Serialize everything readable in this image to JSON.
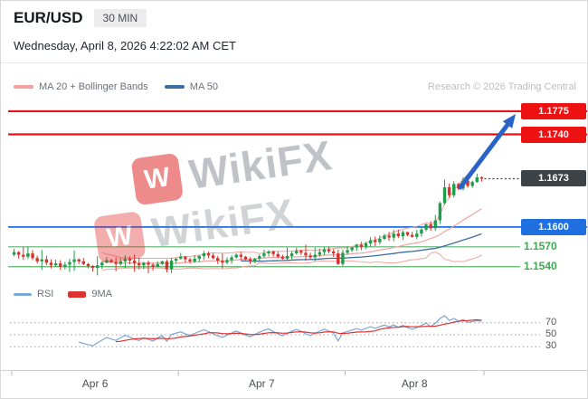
{
  "header": {
    "symbol": "EUR/USD",
    "interval": "30 MIN",
    "datetime": "Wednesday, April 8, 2026 4:22:02 AM CET",
    "research_credit": "Research © 2026 Trading Central"
  },
  "legend": {
    "ma_bollinger": "MA 20 + Bollinger Bands",
    "ma50": "MA 50"
  },
  "rsi_legend": {
    "rsi": "RSI",
    "ma": "9MA"
  },
  "watermark": {
    "text": "WikiFX"
  },
  "chart_data": {
    "type": "candlestick",
    "symbol": "EUR/USD",
    "interval": "30 MIN",
    "ylim": [
      1.1515,
      1.1805
    ],
    "x_categories": [
      "Apr 6",
      "Apr 7",
      "Apr 8"
    ],
    "day_candle_counts": [
      36,
      36,
      30
    ],
    "closes": [
      1.1562,
      1.1558,
      1.1555,
      1.156,
      1.1553,
      1.1548,
      1.1551,
      1.1546,
      1.1542,
      1.1545,
      1.154,
      1.1543,
      1.1547,
      1.1551,
      1.1548,
      1.1544,
      1.1541,
      1.1538,
      1.1542,
      1.1546,
      1.155,
      1.1547,
      1.1544,
      1.1548,
      1.1552,
      1.1549,
      1.1545,
      1.1542,
      1.1546,
      1.1543,
      1.154,
      1.1544,
      1.1548,
      1.1536,
      1.1549,
      1.1552,
      1.1555,
      1.1551,
      1.1548,
      1.1552,
      1.1556,
      1.156,
      1.1557,
      1.1553,
      1.1549,
      1.1546,
      1.155,
      1.1554,
      1.1558,
      1.1555,
      1.1551,
      1.1548,
      1.1552,
      1.1556,
      1.156,
      1.1563,
      1.1559,
      1.1555,
      1.1552,
      1.1556,
      1.156,
      1.1564,
      1.1561,
      1.1557,
      1.1554,
      1.1558,
      1.1562,
      1.1566,
      1.1563,
      1.156,
      1.1544,
      1.1561,
      1.1565,
      1.1569,
      1.1573,
      1.157,
      1.1575,
      1.158,
      1.1577,
      1.1582,
      1.1587,
      1.1584,
      1.159,
      1.1586,
      1.1592,
      1.1588,
      1.1585,
      1.159,
      1.1596,
      1.1604,
      1.1598,
      1.161,
      1.1636,
      1.166,
      1.1648,
      1.1665,
      1.1658,
      1.167,
      1.1662,
      1.1668,
      1.1675,
      1.1673
    ],
    "levels": [
      {
        "label": "1.1775",
        "value": 1.1775,
        "role": "resistance",
        "line": "#ee1111",
        "box_bg": "#ee1111",
        "box_text": "#ffffff",
        "line_style": "solid",
        "line_width": 2.2,
        "full_width": true
      },
      {
        "label": "1.1740",
        "value": 1.174,
        "role": "resistance",
        "line": "#ee1111",
        "box_bg": "#ee1111",
        "box_text": "#ffffff",
        "line_style": "solid",
        "line_width": 2.2,
        "full_width": true
      },
      {
        "label": "1.1673",
        "value": 1.1673,
        "role": "last_price",
        "line": "#444444",
        "box_bg": "#3d4247",
        "box_text": "#ffffff",
        "line_style": "dotted",
        "line_width": 1.2,
        "full_width": false
      },
      {
        "label": "1.1600",
        "value": 1.16,
        "role": "support",
        "line": "#1f6fe0",
        "box_bg": "#1f6fe0",
        "box_text": "#ffffff",
        "line_style": "solid",
        "line_width": 1.8,
        "full_width": true
      },
      {
        "label": "1.1570",
        "value": 1.157,
        "role": "support",
        "line": "#57b06a",
        "box_bg": null,
        "box_text": "#3faa4f",
        "line_style": "solid",
        "line_width": 1.2,
        "full_width": false
      },
      {
        "label": "1.1540",
        "value": 1.154,
        "role": "support",
        "line": "#57b06a",
        "box_bg": null,
        "box_text": "#3faa4f",
        "line_style": "solid",
        "line_width": 1.2,
        "full_width": false
      }
    ],
    "indicators": {
      "ma20_bollinger": {
        "period": 20,
        "band_mult": 2,
        "color": "#f2a2a2"
      },
      "ma50": {
        "period": 50,
        "color": "#3c6e9f"
      }
    },
    "rsi": {
      "period": 14,
      "ma_period": 9,
      "range": [
        0,
        100
      ],
      "gridlines": [
        70,
        50,
        30
      ],
      "color": "#7aa6d8",
      "ma_color": "#e03131"
    },
    "colors": {
      "candle_up": "#1e9e4a",
      "candle_down": "#d8332a",
      "arrow": "#2a63c8"
    },
    "annotations": [
      {
        "type": "arrow",
        "direction": "up",
        "target_level": 1.1775
      }
    ]
  }
}
